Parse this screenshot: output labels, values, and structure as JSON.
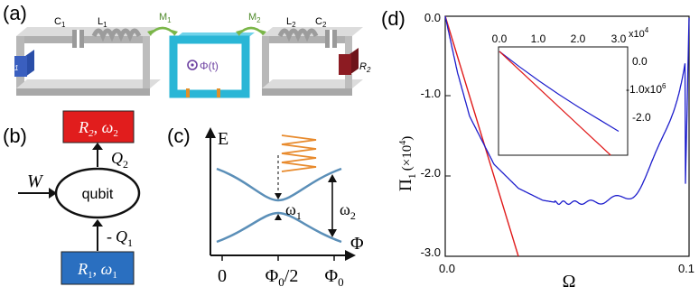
{
  "panel_a": {
    "label": "(a)",
    "c1": "C",
    "c1_sub": "1",
    "l1": "L",
    "l1_sub": "1",
    "m1": "M",
    "m1_sub": "1",
    "m2": "M",
    "m2_sub": "2",
    "l2": "L",
    "l2_sub": "2",
    "c2": "C",
    "c2_sub": "2",
    "r1": "R",
    "r1_sub": "1",
    "r2": "R",
    "r2_sub": "2",
    "flux": "Φ(t)",
    "colors": {
      "wire": "#c6c6c6",
      "resistor1": "#3a5fbf",
      "resistor2": "#8c1b22",
      "qubit_loop": "#2ab6d6",
      "mutual": "#7ab648",
      "junction": "#e0902a"
    }
  },
  "panel_b": {
    "label": "(b)",
    "bath_top": "R",
    "bath_top_sub": "2",
    "bath_top_omega": "ω",
    "bath_top_omega_sub": "2",
    "bath_bottom": "R",
    "bath_bottom_sub": "1",
    "bath_bottom_omega": "ω",
    "bath_bottom_omega_sub": "1",
    "qubit": "qubit",
    "work": "W",
    "q2": "Q",
    "q2_sub": "2",
    "q1_sign": "-",
    "q1": "Q",
    "q1_sub": "1",
    "colors": {
      "top_box": "#e11d1d",
      "bottom_box": "#2a6fc0"
    }
  },
  "panel_c": {
    "label": "(c)",
    "energy_axis": "E",
    "flux_axis": "Φ",
    "omega1": "ω",
    "omega1_sub": "1",
    "omega2": "ω",
    "omega2_sub": "2",
    "tick_0": "0",
    "tick_half_main": "Φ",
    "tick_half_sub": "0",
    "tick_half_suffix": "/2",
    "tick_full_main": "Φ",
    "tick_full_sub": "0",
    "colors": {
      "levels": "#5b8fb8",
      "drive": "#e88a2c"
    }
  },
  "panel_d": {
    "label": "(d)",
    "ylabel_main": "Π",
    "ylabel_sub": "1",
    "ylabel_unit": "(×10",
    "ylabel_exp": "4",
    "ylabel_close": ")",
    "xlabel": "Ω",
    "y_ticks": [
      "0.0",
      "-1.0",
      "-2.0",
      "-3.0"
    ],
    "x_ticks": [
      "0.0",
      "0.1"
    ],
    "inset": {
      "x_ticks": [
        "0.0",
        "1.0",
        "2.0",
        "3.0"
      ],
      "x_multiplier": "x10",
      "x_multiplier_exp": "4",
      "y_ticks": [
        "0.0",
        "-1.0x10",
        "-2.0"
      ],
      "y_tick_exp": "6"
    },
    "colors": {
      "blue": "#1d1dcc",
      "red": "#e01a1a"
    }
  },
  "chart_data": {
    "type": "line",
    "xlabel": "Ω",
    "ylabel": "Π1 (×10^4)",
    "xlim": [
      0.0,
      0.1
    ],
    "ylim": [
      -3.0,
      0.0
    ],
    "series": [
      {
        "color": "#1d1dcc",
        "x": [
          0.0,
          0.005,
          0.01,
          0.02,
          0.03,
          0.04,
          0.05,
          0.055,
          0.06,
          0.065,
          0.07,
          0.075,
          0.08,
          0.085,
          0.09,
          0.095,
          0.1
        ],
        "y": [
          0.0,
          -0.7,
          -1.25,
          -1.85,
          -2.15,
          -2.3,
          -2.35,
          -2.35,
          -2.25,
          -2.3,
          -2.05,
          -2.38,
          -1.85,
          -2.4,
          -1.2,
          -2.3,
          -0.02
        ],
        "oscillating_segment": {
          "x_start": 0.045,
          "x_end": 0.1,
          "wave_periods": [
            0.003,
            0.0035,
            0.004,
            0.0045,
            0.005,
            0.006,
            0.007,
            0.0085,
            0.01
          ],
          "amplitude_end": 0.55
        }
      },
      {
        "color": "#e01a1a",
        "x": [
          0.0,
          0.03
        ],
        "y": [
          0.0,
          -3.0
        ]
      }
    ],
    "inset": {
      "xlim": [
        0.0,
        30000
      ],
      "ylim": [
        -2600000,
        0
      ],
      "series": [
        {
          "color": "#1d1dcc",
          "x": [
            0,
            5000,
            10000,
            15000,
            20000,
            25000,
            30000
          ],
          "y": [
            0,
            -380000,
            -740000,
            -1080000,
            -1400000,
            -1700000,
            -2000000
          ]
        },
        {
          "color": "#e01a1a",
          "x": [
            0,
            28000
          ],
          "y": [
            0,
            -2600000
          ]
        }
      ]
    }
  }
}
